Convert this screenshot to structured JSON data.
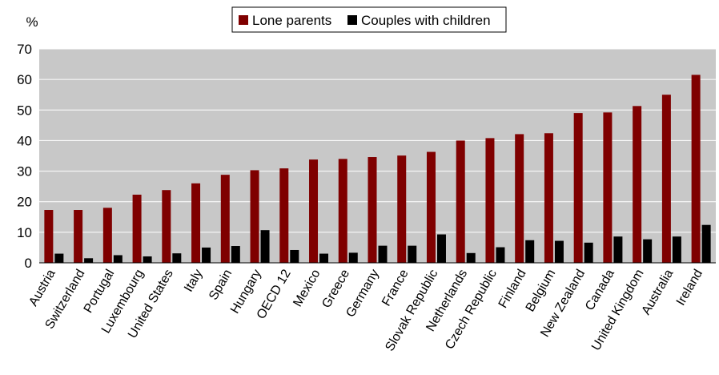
{
  "chart_data": {
    "type": "bar",
    "ylabel": "%",
    "ylim": [
      0,
      70
    ],
    "yticks": [
      0,
      10,
      20,
      30,
      40,
      50,
      60,
      70
    ],
    "grid": true,
    "legend_position": "top-center",
    "categories": [
      "Austria",
      "Switzerland",
      "Portugal",
      "Luxembourg",
      "United States",
      "Italy",
      "Spain",
      "Hungary",
      "OECD 12",
      "Mexico",
      "Greece",
      "Germany",
      "France",
      "Slovak Republic",
      "Netherlands",
      "Czech Republic",
      "Finland",
      "Belgium",
      "New Zealand",
      "Canada",
      "United Kingdom",
      "Australia",
      "Ireland"
    ],
    "series": [
      {
        "name": "Lone parents",
        "color": "#7f0000",
        "values": [
          17.3,
          17.3,
          18.0,
          22.3,
          23.8,
          26.0,
          28.8,
          30.3,
          30.9,
          33.8,
          34.0,
          34.6,
          35.1,
          36.3,
          40.0,
          40.8,
          42.1,
          42.4,
          49.0,
          49.2,
          51.3,
          55.0,
          61.5
        ]
      },
      {
        "name": "Couples with children",
        "color": "#000000",
        "values": [
          3.0,
          1.5,
          2.5,
          2.1,
          3.1,
          5.0,
          5.5,
          10.7,
          4.2,
          3.0,
          3.3,
          5.6,
          5.6,
          9.3,
          3.2,
          5.1,
          7.4,
          7.2,
          6.6,
          8.6,
          7.7,
          8.6,
          12.4
        ]
      }
    ]
  }
}
